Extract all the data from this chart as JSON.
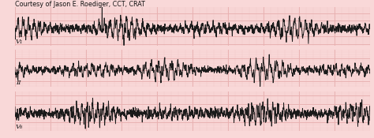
{
  "background_color": "#f9d8d8",
  "grid_major_color": "#e8b0b0",
  "grid_minor_color": "#f2c8c8",
  "line_color": "#1a1a1a",
  "text_color": "#111111",
  "courtesy_text": "Courtesy of Jason E. Roediger, CCT, CRAT",
  "lead_labels": [
    "V₁",
    "II",
    "V₆"
  ],
  "fig_width": 4.74,
  "fig_height": 1.75,
  "dpi": 100,
  "line_width": 0.65,
  "label_fontsize": 6.0,
  "courtesy_fontsize": 5.8,
  "num_points": 2000
}
